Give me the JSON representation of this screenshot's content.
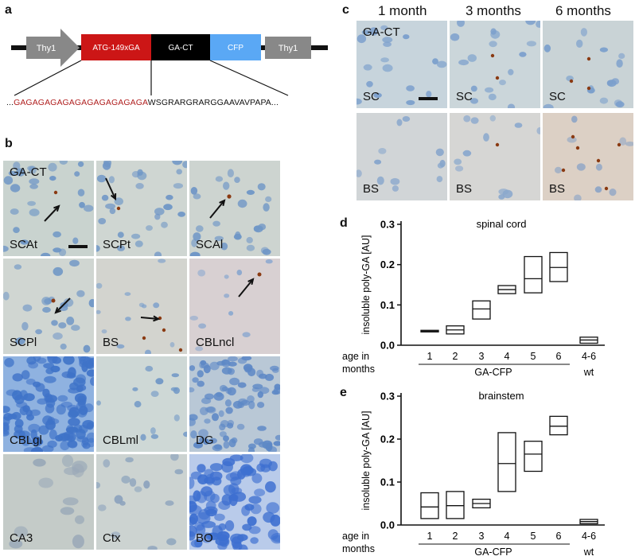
{
  "panels": {
    "a": "a",
    "b": "b",
    "c": "c",
    "d": "d",
    "e": "e"
  },
  "construct": {
    "boxes": [
      "Thy1",
      "ATG-149xGA",
      "GA-CT",
      "CFP",
      "Thy1"
    ],
    "seq_prefix": "...",
    "seq_red": "GAGAGAGAGAGAGAGAGAGAGA",
    "seq_rest": "WSGRARGRARGGAAVAVPAPA..."
  },
  "panel_b": {
    "header": "GA-CT",
    "tiles": [
      "SCAt",
      "SCPt",
      "SCAl",
      "SCPl",
      "BS",
      "CBLncl",
      "CBLgl",
      "CBLml",
      "DG",
      "CA3",
      "Ctx",
      "BO"
    ]
  },
  "panel_c": {
    "columns": [
      "1 month",
      "3 months",
      "6 months"
    ],
    "header": "GA-CT",
    "rows": [
      "SC",
      "BS"
    ]
  },
  "chart_data": [
    {
      "type": "box",
      "title": "spinal cord",
      "ylabel": "insoluble poly-GA [AU]",
      "xlabel_left": "age in months",
      "categories": [
        "1",
        "2",
        "3",
        "4",
        "5",
        "6",
        "4-6"
      ],
      "group_labels": [
        "GA-CFP",
        "wt"
      ],
      "yticks": [
        "0.0",
        "0.1",
        "0.2",
        "0.3"
      ],
      "ylim": [
        0,
        0.3
      ],
      "boxes": [
        {
          "low": 0.033,
          "mid": 0.035,
          "high": 0.037
        },
        {
          "low": 0.028,
          "mid": 0.038,
          "high": 0.048
        },
        {
          "low": 0.065,
          "mid": 0.09,
          "high": 0.11
        },
        {
          "low": 0.128,
          "mid": 0.138,
          "high": 0.148
        },
        {
          "low": 0.13,
          "mid": 0.165,
          "high": 0.22
        },
        {
          "low": 0.158,
          "mid": 0.193,
          "high": 0.23
        },
        {
          "low": 0.005,
          "mid": 0.013,
          "high": 0.02
        }
      ]
    },
    {
      "type": "box",
      "title": "brainstem",
      "ylabel": "insoluble poly-GA [AU]",
      "xlabel_left": "age in months",
      "categories": [
        "1",
        "2",
        "3",
        "4",
        "5",
        "6",
        "4-6"
      ],
      "group_labels": [
        "GA-CFP",
        "wt"
      ],
      "yticks": [
        "0.0",
        "0.1",
        "0.2",
        "0.3"
      ],
      "ylim": [
        0,
        0.3
      ],
      "boxes": [
        {
          "low": 0.015,
          "mid": 0.042,
          "high": 0.075
        },
        {
          "low": 0.015,
          "mid": 0.045,
          "high": 0.078
        },
        {
          "low": 0.04,
          "mid": 0.05,
          "high": 0.06
        },
        {
          "low": 0.078,
          "mid": 0.143,
          "high": 0.215
        },
        {
          "low": 0.125,
          "mid": 0.165,
          "high": 0.195
        },
        {
          "low": 0.21,
          "mid": 0.23,
          "high": 0.253
        },
        {
          "low": 0.003,
          "mid": 0.008,
          "high": 0.013
        }
      ]
    }
  ]
}
